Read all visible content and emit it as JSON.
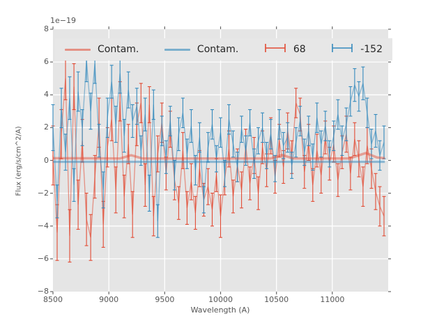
{
  "figure": {
    "bg": "#ffffff",
    "axes_bg": "#e5e5e5",
    "grid_color": "#ffffff",
    "tick_mark_color": "#666666",
    "tick_label_color": "#555555",
    "legend_bg": "#e7e7e7",
    "red": "#E24A33",
    "blue": "#348ABD"
  },
  "legend": {
    "items": [
      {
        "label": "Contam.",
        "type": "line",
        "color": "rgba(226,74,51,0.55)"
      },
      {
        "label": "Contam.",
        "type": "line",
        "color": "rgba(52,138,189,0.6)"
      },
      {
        "label": "68",
        "type": "errorbar",
        "color": "#E24A33"
      },
      {
        "label": "-152",
        "type": "errorbar",
        "color": "#348ABD"
      }
    ]
  },
  "chart_data": {
    "type": "line",
    "subtype": "errorbar-spectrum",
    "title": "",
    "xlabel": "Wavelength (A)",
    "ylabel": "Flux (erg/s/cm^2/A)",
    "offset_text": "1e−19",
    "xlim": [
      8500,
      11500
    ],
    "ylim": [
      -8,
      8
    ],
    "grid": true,
    "legend_position": "top-inside-horizontal",
    "xticks": {
      "values": [
        8500,
        9000,
        9500,
        10000,
        10500,
        11000
      ],
      "labels": [
        "8500",
        "9000",
        "9500",
        "10000",
        "10500",
        "11000"
      ]
    },
    "yticks": {
      "values": [
        -8,
        -6,
        -4,
        -2,
        0,
        2,
        4,
        6,
        8
      ],
      "labels": [
        "−8",
        "−6",
        "−4",
        "−2",
        "0",
        "2",
        "4",
        "6",
        "8"
      ]
    },
    "x_start": 8500,
    "x_step": 37.5,
    "n_points": 80,
    "units": "1e-19 erg/s/cm^2/A",
    "series": [
      {
        "name": "68",
        "color": "#E24A33",
        "line_alpha": 0.55,
        "y": [
          0.3,
          -4.4,
          1.6,
          5.0,
          -4.6,
          4.5,
          -2.7,
          1.2,
          -3.6,
          -4.7,
          -1.0,
          2.3,
          -3.9,
          0.8,
          2.5,
          -1.8,
          3.6,
          -2.2,
          1.0,
          -3.3,
          2.2,
          3.5,
          -1.5,
          3.4,
          -3.4,
          0.4,
          2.3,
          -0.8,
          1.9,
          -1.2,
          -2.6,
          0.6,
          -2.9,
          -1.3,
          -3.2,
          -0.5,
          -2.4,
          -1.6,
          -3.0,
          -0.9,
          -3.4,
          -1.1,
          0.7,
          -2.2,
          -0.3,
          -1.8,
          0.9,
          -1.4,
          0.3,
          -2.0,
          0.8,
          -0.6,
          1.5,
          -1.0,
          1.2,
          -0.4,
          1.8,
          0.2,
          3.5,
          2.8,
          -0.7,
          1.1,
          -1.5,
          0.6,
          -0.9,
          1.4,
          -0.2,
          1.0,
          -1.2,
          0.5,
          1.6,
          -0.8,
          1.3,
          0.1,
          -1.6,
          0.9,
          -0.5,
          -1.9,
          -2.8,
          -3.4
        ],
        "yerr": [
          1.8,
          1.7,
          1.5,
          1.3,
          1.6,
          1.4,
          1.5,
          1.3,
          1.6,
          1.4,
          1.3,
          1.5,
          1.4,
          1.2,
          1.3,
          1.4,
          1.2,
          1.3,
          1.2,
          1.4,
          1.3,
          1.2,
          1.3,
          1.1,
          1.2,
          1.1,
          1.2,
          1.0,
          1.1,
          1.2,
          1.0,
          1.1,
          1.0,
          1.1,
          1.0,
          1.1,
          1.0,
          1.1,
          1.0,
          1.0,
          1.3,
          1.0,
          1.1,
          1.0,
          1.0,
          1.1,
          1.0,
          1.0,
          1.1,
          1.0,
          1.0,
          1.0,
          1.1,
          1.0,
          1.0,
          1.0,
          1.1,
          1.0,
          0.9,
          1.0,
          1.0,
          1.1,
          1.0,
          1.0,
          1.1,
          1.0,
          1.0,
          1.1,
          1.0,
          1.0,
          1.1,
          1.0,
          1.0,
          1.1,
          1.2,
          1.1,
          1.2,
          1.1,
          1.2,
          1.2
        ]
      },
      {
        "name": "-152",
        "color": "#348ABD",
        "line_alpha": 0.55,
        "y": [
          2.0,
          -2.5,
          3.2,
          0.5,
          3.8,
          -1.5,
          4.2,
          2.0,
          6.1,
          3.0,
          5.9,
          1.2,
          -1.8,
          2.6,
          4.8,
          2.2,
          5.3,
          1.5,
          4.3,
          2.4,
          3.3,
          0.6,
          2.8,
          -2.0,
          3.4,
          -3.7,
          1.8,
          0.2,
          2.4,
          -0.9,
          1.6,
          2.9,
          0.4,
          2.1,
          -0.6,
          1.4,
          -2.4,
          0.8,
          2.2,
          0.1,
          1.7,
          -0.8,
          2.5,
          1.0,
          -0.4,
          1.9,
          0.6,
          2.3,
          -0.2,
          1.2,
          2.0,
          0.3,
          1.6,
          -0.5,
          2.2,
          0.9,
          1.4,
          -0.3,
          1.1,
          2.4,
          0.5,
          1.8,
          0.2,
          2.6,
          1.0,
          2.1,
          0.4,
          1.5,
          2.8,
          1.2,
          2.2,
          3.6,
          4.6,
          3.9,
          4.7,
          2.9,
          1.0,
          1.8,
          0.3,
          1.1
        ],
        "yerr": [
          1.4,
          1.0,
          1.2,
          1.1,
          1.3,
          1.0,
          1.2,
          1.1,
          1.3,
          1.1,
          1.2,
          1.0,
          1.1,
          1.2,
          1.0,
          1.1,
          1.2,
          1.0,
          1.1,
          1.0,
          1.1,
          0.9,
          1.0,
          1.1,
          0.9,
          1.0,
          0.9,
          1.0,
          0.9,
          0.9,
          1.0,
          0.9,
          0.9,
          1.0,
          0.9,
          0.9,
          0.8,
          0.9,
          0.9,
          0.8,
          0.9,
          0.8,
          0.9,
          0.8,
          0.9,
          0.8,
          0.9,
          0.8,
          0.9,
          0.8,
          0.9,
          0.8,
          0.9,
          0.8,
          0.9,
          0.8,
          0.9,
          0.8,
          0.9,
          0.9,
          0.8,
          0.9,
          0.8,
          0.9,
          0.8,
          0.9,
          0.8,
          0.9,
          0.9,
          0.9,
          1.0,
          0.9,
          1.0,
          0.9,
          1.0,
          0.9,
          0.9,
          1.0,
          0.9,
          1.0
        ]
      }
    ],
    "contam": [
      {
        "name": "Contam.",
        "color": "#348ABD",
        "alpha": 0.5,
        "x": [
          8500,
          11470
        ],
        "y": [
          -0.08,
          -0.08
        ]
      },
      {
        "name": "Contam.",
        "color": "#E24A33",
        "alpha": 0.45,
        "x": [
          8500,
          9100,
          9200,
          9300,
          10450,
          10550,
          10650,
          11150,
          11300,
          11400,
          11470
        ],
        "y": [
          0.13,
          0.12,
          0.32,
          0.12,
          0.12,
          0.33,
          0.12,
          0.12,
          0.45,
          0.18,
          0.13
        ]
      }
    ]
  }
}
